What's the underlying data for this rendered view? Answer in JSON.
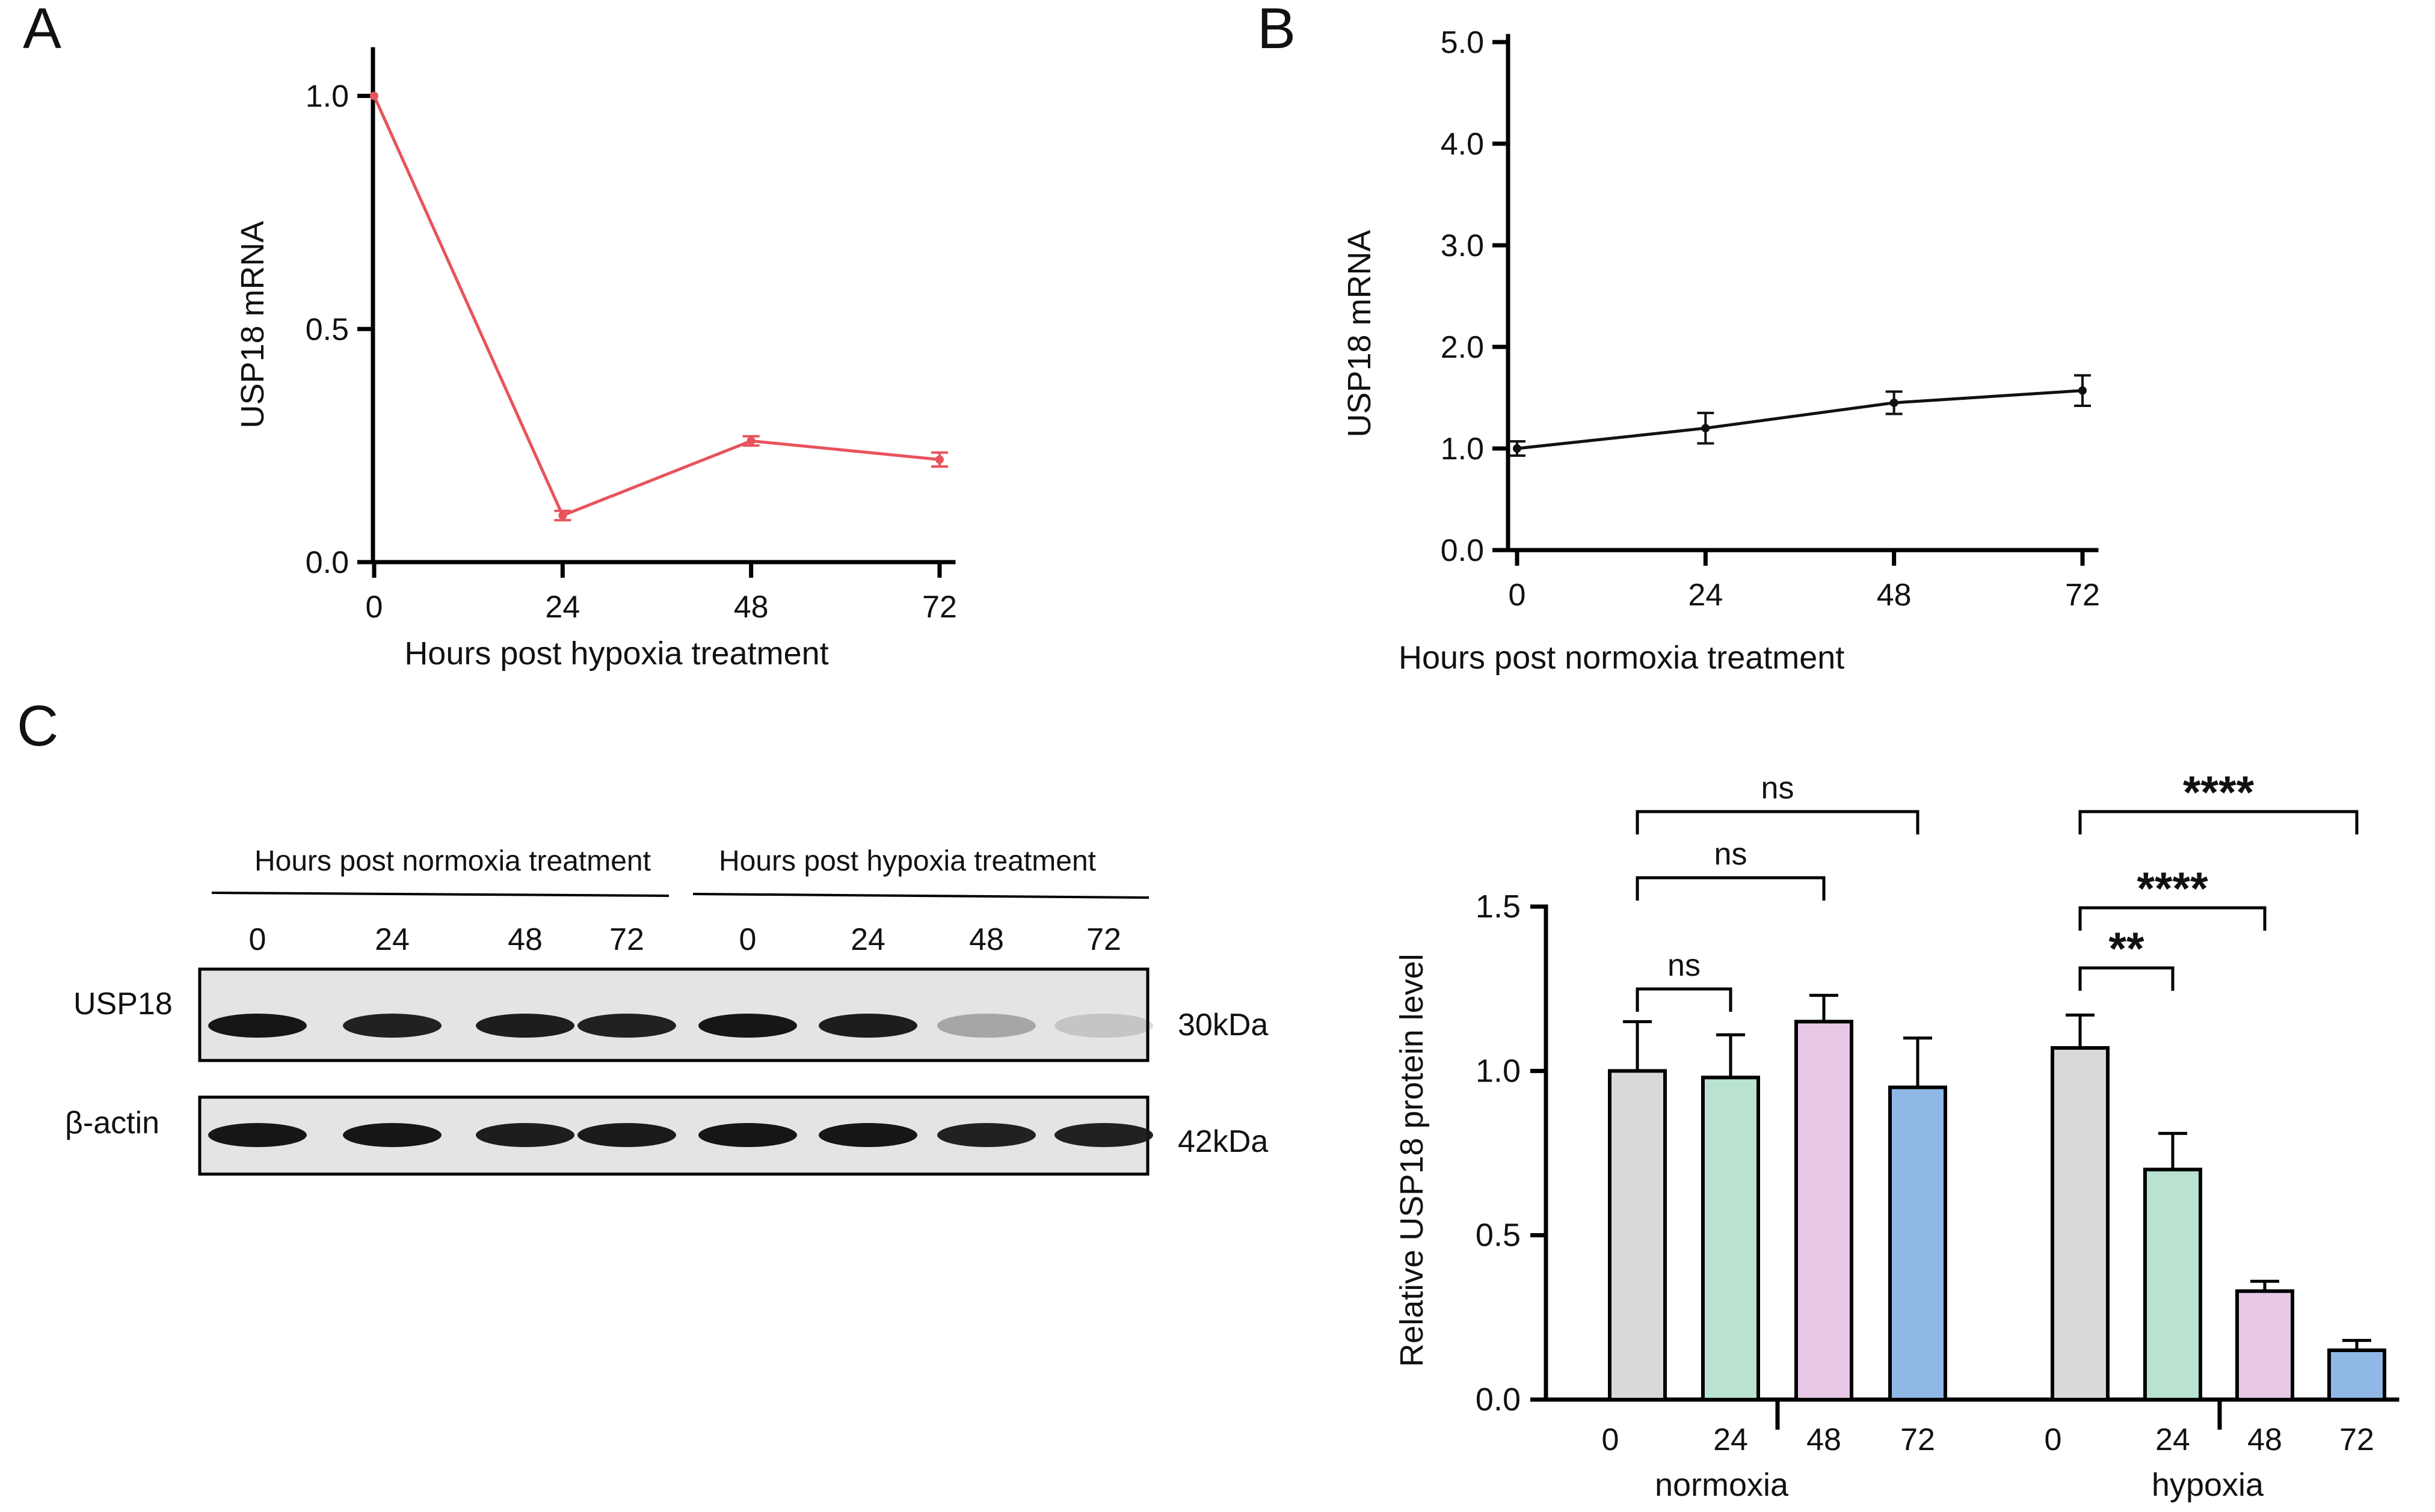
{
  "panels": {
    "a": "A",
    "b": "B",
    "c": "C"
  },
  "colors": {
    "line_a": "#e8535b",
    "line_b": "#111111",
    "normoxia_0": "#d9d9d9",
    "normoxia_24": "#b9e3d0",
    "normoxia_48": "#e6c8e6",
    "normoxia_72": "#8fb8e6",
    "band_dark": "#161616",
    "blot_bg": "#e4e4e4"
  },
  "blot": {
    "header_normoxia": "Hours post normoxia treatment",
    "header_hypoxia": "Hours post hypoxia treatment",
    "lanes": [
      "0",
      "24",
      "48",
      "72",
      "0",
      "24",
      "48",
      "72"
    ],
    "rows": [
      {
        "label": "USP18",
        "size": "30kDa",
        "intensity": [
          1.0,
          0.95,
          0.97,
          0.95,
          1.0,
          0.97,
          0.3,
          0.15
        ]
      },
      {
        "label": "β-actin",
        "size": "42kDa",
        "intensity": [
          1.0,
          1.0,
          0.97,
          0.98,
          1.0,
          1.0,
          0.95,
          0.95
        ]
      }
    ]
  },
  "chart_data": [
    {
      "id": "A",
      "type": "line",
      "x": [
        0,
        24,
        48,
        72
      ],
      "x_ticks": [
        "0",
        "24",
        "48",
        "72"
      ],
      "y": [
        1.0,
        0.1,
        0.26,
        0.22
      ],
      "err": [
        0.0,
        0.01,
        0.01,
        0.015
      ],
      "y_ticks": [
        "0.0",
        "0.5",
        "1.0"
      ],
      "ylim": [
        0,
        1.1
      ],
      "xlabel": "Hours post hypoxia treatment",
      "ylabel": "USP18 mRNA"
    },
    {
      "id": "B",
      "type": "line",
      "x": [
        0,
        24,
        48,
        72
      ],
      "x_ticks": [
        "0",
        "24",
        "48",
        "72"
      ],
      "y": [
        1.0,
        1.2,
        1.45,
        1.57
      ],
      "err": [
        0.07,
        0.15,
        0.11,
        0.15
      ],
      "y_ticks": [
        "0.0",
        "1.0",
        "2.0",
        "3.0",
        "4.0",
        "5.0"
      ],
      "ylim": [
        0,
        5.0
      ],
      "xlabel": "Hours post normoxia treatment",
      "ylabel": "USP18 mRNA"
    },
    {
      "id": "C",
      "type": "bar",
      "ylabel": "Relative USP18 protein level",
      "y_ticks": [
        "0.0",
        "0.5",
        "1.0",
        "1.5"
      ],
      "ylim": [
        0,
        1.5
      ],
      "groups": [
        {
          "name": "normoxia",
          "categories": [
            "0",
            "24",
            "48",
            "72"
          ],
          "values": [
            1.0,
            0.98,
            1.15,
            0.95
          ],
          "err": [
            0.15,
            0.13,
            0.08,
            0.15
          ]
        },
        {
          "name": "hypoxia",
          "categories": [
            "0",
            "24",
            "48",
            "72"
          ],
          "values": [
            1.07,
            0.7,
            0.33,
            0.15
          ],
          "err": [
            0.1,
            0.11,
            0.03,
            0.03
          ]
        }
      ],
      "significance": [
        {
          "group": 0,
          "from": 0,
          "to": 1,
          "label": "ns"
        },
        {
          "group": 0,
          "from": 0,
          "to": 2,
          "label": "ns"
        },
        {
          "group": 0,
          "from": 0,
          "to": 3,
          "label": "ns"
        },
        {
          "group": 1,
          "from": 0,
          "to": 1,
          "label": "**"
        },
        {
          "group": 1,
          "from": 0,
          "to": 2,
          "label": "****"
        },
        {
          "group": 1,
          "from": 0,
          "to": 3,
          "label": "****"
        }
      ]
    }
  ]
}
